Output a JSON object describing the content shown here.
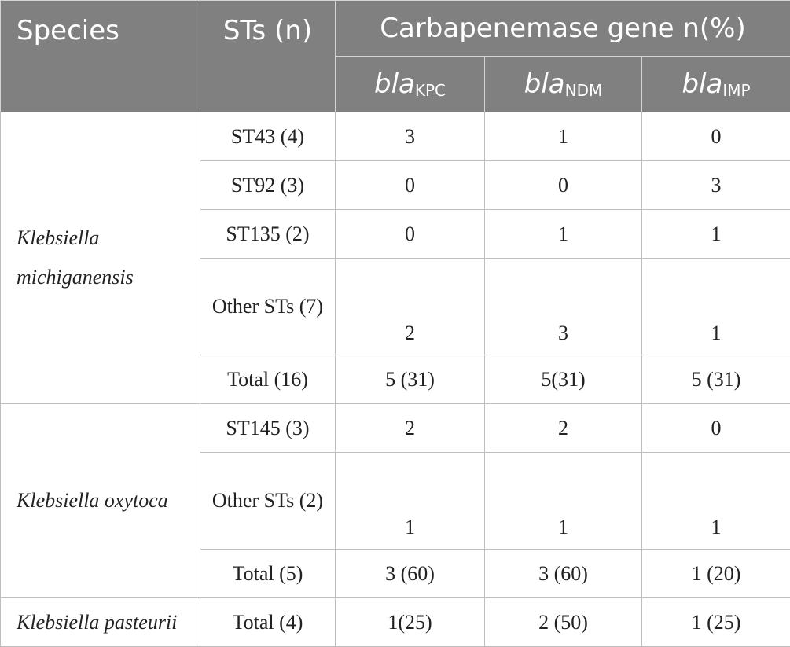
{
  "header": {
    "species": "Species",
    "sts": "STs (n)",
    "carbapenemase": "Carbapenemase gene n(%)",
    "genes": [
      {
        "base": "bla",
        "sub": "KPC"
      },
      {
        "base": "bla",
        "sub": "NDM"
      },
      {
        "base": "bla",
        "sub": "IMP"
      }
    ]
  },
  "groups": [
    {
      "species": "Klebsiella michiganensis",
      "rows": [
        {
          "st": "ST43 (4)",
          "kpc": "3",
          "ndm": "1",
          "imp": "0"
        },
        {
          "st": "ST92 (3)",
          "kpc": "0",
          "ndm": "0",
          "imp": "3"
        },
        {
          "st": "ST135 (2)",
          "kpc": "0",
          "ndm": "1",
          "imp": "1"
        },
        {
          "st": "Other STs (7)",
          "kpc": "2",
          "ndm": "3",
          "imp": "1"
        },
        {
          "st": "Total (16)",
          "kpc": "5 (31)",
          "ndm": "5(31)",
          "imp": "5 (31)"
        }
      ]
    },
    {
      "species": "Klebsiella oxytoca",
      "rows": [
        {
          "st": "ST145 (3)",
          "kpc": "2",
          "ndm": "2",
          "imp": "0"
        },
        {
          "st": "Other STs (2)",
          "kpc": "1",
          "ndm": "1",
          "imp": "1"
        },
        {
          "st": "Total (5)",
          "kpc": "3 (60)",
          "ndm": "3 (60)",
          "imp": "1 (20)"
        }
      ]
    },
    {
      "species": "Klebsiella pasteurii",
      "rows": [
        {
          "st": "Total (4)",
          "kpc": "1(25)",
          "ndm": "2 (50)",
          "imp": "1 (25)"
        }
      ]
    }
  ]
}
